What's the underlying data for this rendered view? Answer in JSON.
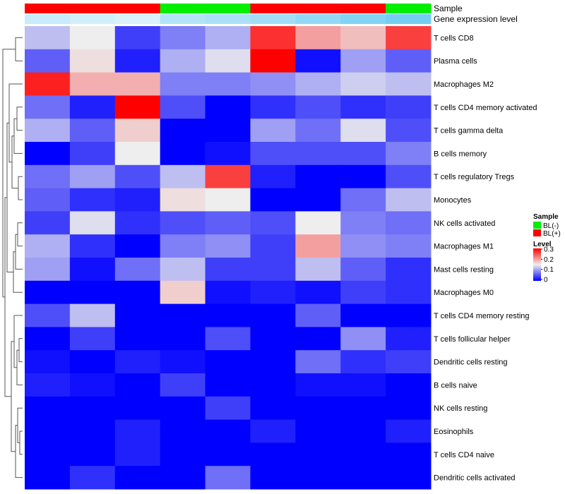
{
  "chart_data": {
    "type": "heatmap",
    "annotations": {
      "sample_title": "Sample",
      "gene_title": "Gene expression level",
      "sample_groups": [
        "BL(+)",
        "BL(+)",
        "BL(+)",
        "BL(-)",
        "BL(-)",
        "BL(+)",
        "BL(+)",
        "BL(+)",
        "BL(-)"
      ],
      "gene_levels": [
        0.35,
        0.3,
        0.25,
        0.5,
        0.55,
        0.6,
        0.7,
        0.8,
        0.9
      ]
    },
    "rows": [
      "T cells CD8",
      "Plasma cells",
      "Macrophages M2",
      "T cells CD4 memory activated",
      "T cells gamma delta",
      "B cells memory",
      "T cells regulatory  Tregs",
      "Monocytes",
      "NK cells activated",
      "Macrophages M1",
      "Mast cells resting",
      "Macrophages M0",
      "T cells CD4 memory resting",
      "T cells follicular helper",
      "Dendritic cells resting",
      "B cells naive",
      "NK cells resting",
      "Eosinophils",
      "T cells CD4 naive",
      "Dendritic cells activated"
    ],
    "values": [
      [
        0.12,
        0.15,
        0.04,
        0.08,
        0.11,
        0.27,
        0.2,
        0.18,
        0.26
      ],
      [
        0.06,
        0.16,
        0.02,
        0.11,
        0.14,
        0.3,
        0.01,
        0.1,
        0.06
      ],
      [
        0.28,
        0.19,
        0.19,
        0.08,
        0.08,
        0.09,
        0.11,
        0.13,
        0.12
      ],
      [
        0.07,
        0.02,
        0.3,
        0.05,
        0.0,
        0.03,
        0.05,
        0.03,
        0.04
      ],
      [
        0.11,
        0.06,
        0.17,
        0.0,
        0.0,
        0.1,
        0.07,
        0.14,
        0.05
      ],
      [
        0.0,
        0.04,
        0.15,
        0.0,
        0.01,
        0.05,
        0.05,
        0.05,
        0.08
      ],
      [
        0.07,
        0.1,
        0.05,
        0.12,
        0.26,
        0.02,
        0.0,
        0.0,
        0.05
      ],
      [
        0.06,
        0.03,
        0.02,
        0.16,
        0.15,
        0.0,
        0.0,
        0.07,
        0.12
      ],
      [
        0.04,
        0.14,
        0.03,
        0.05,
        0.06,
        0.05,
        0.15,
        0.08,
        0.07
      ],
      [
        0.11,
        0.03,
        0.0,
        0.08,
        0.09,
        0.04,
        0.2,
        0.09,
        0.08
      ],
      [
        0.1,
        0.01,
        0.07,
        0.12,
        0.04,
        0.04,
        0.12,
        0.06,
        0.03
      ],
      [
        0.0,
        0.0,
        0.0,
        0.17,
        0.01,
        0.02,
        0.01,
        0.04,
        0.03
      ],
      [
        0.05,
        0.12,
        0.0,
        0.0,
        0.0,
        0.0,
        0.06,
        0.0,
        0.0
      ],
      [
        0.0,
        0.04,
        0.0,
        0.0,
        0.05,
        0.0,
        0.0,
        0.09,
        0.02
      ],
      [
        0.01,
        0.0,
        0.02,
        0.01,
        0.0,
        0.0,
        0.07,
        0.03,
        0.04
      ],
      [
        0.02,
        0.01,
        0.0,
        0.04,
        0.0,
        0.0,
        0.01,
        0.01,
        0.0
      ],
      [
        0.0,
        0.0,
        0.0,
        0.0,
        0.04,
        0.0,
        0.0,
        0.0,
        0.0
      ],
      [
        0.0,
        0.0,
        0.02,
        0.0,
        0.0,
        0.02,
        0.0,
        0.0,
        0.02
      ],
      [
        0.0,
        0.0,
        0.02,
        0.0,
        0.0,
        0.0,
        0.0,
        0.0,
        0.0
      ],
      [
        0.0,
        0.03,
        0.0,
        0.0,
        0.07,
        0.0,
        0.0,
        0.0,
        0.0
      ]
    ],
    "color_scale": {
      "low": "#0000FF",
      "mid": "#EEEEEE",
      "high": "#FF0000",
      "min": 0,
      "mid_value": 0.15,
      "max": 0.3
    },
    "legend": {
      "position": "right",
      "sample_title": "Sample",
      "sample_entries": [
        {
          "label": "BL(-)",
          "color": "#00EE00"
        },
        {
          "label": "BL(+)",
          "color": "#FF0000"
        }
      ],
      "level_title": "Level",
      "level_ticks": [
        "0.3",
        "0.2",
        "0.1",
        "0"
      ]
    }
  }
}
